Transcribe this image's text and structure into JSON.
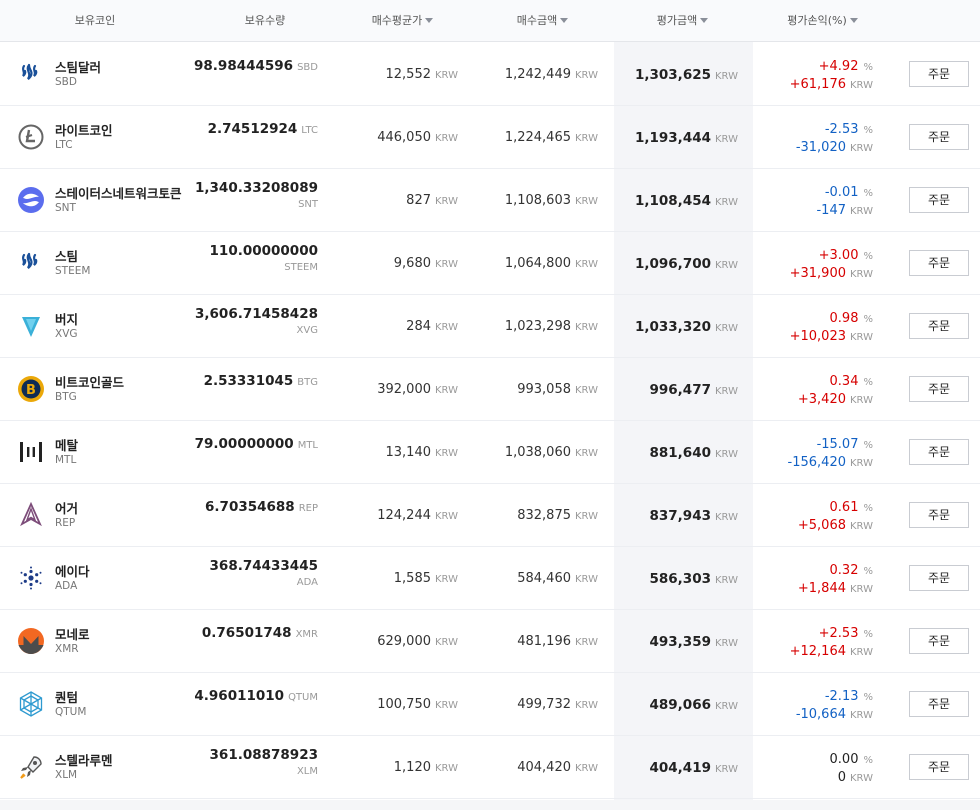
{
  "header": {
    "col_coin": "보유코인",
    "col_qty": "보유수량",
    "col_avg_price": "매수평균가",
    "col_buy_amount": "매수금액",
    "col_eval_amount": "평가금액",
    "col_profit": "평가손익(%)"
  },
  "unit": "KRW",
  "pct_unit": "%",
  "order_label": "주문",
  "rows": [
    {
      "icon": "steem-dollars-icon",
      "name": "스팀달러",
      "symbol": "SBD",
      "qty": "98.98444596",
      "qty_unit": "SBD",
      "avg_price": "12,552",
      "buy_amount": "1,242,449",
      "eval_amount": "1,303,625",
      "profit_pct": "+4.92",
      "profit_krw": "+61,176",
      "color": "#d60000"
    },
    {
      "icon": "litecoin-icon",
      "name": "라이트코인",
      "symbol": "LTC",
      "qty": "2.74512924",
      "qty_unit": "LTC",
      "avg_price": "446,050",
      "buy_amount": "1,224,465",
      "eval_amount": "1,193,444",
      "profit_pct": "-2.53",
      "profit_krw": "-31,020",
      "color": "#1261c4"
    },
    {
      "icon": "status-network-icon",
      "name": "스테이터스네트워크토큰",
      "symbol": "SNT",
      "qty": "1,340.33208089",
      "qty_unit": "SNT",
      "avg_price": "827",
      "buy_amount": "1,108,603",
      "eval_amount": "1,108,454",
      "profit_pct": "-0.01",
      "profit_krw": "-147",
      "color": "#1261c4"
    },
    {
      "icon": "steem-icon",
      "name": "스팀",
      "symbol": "STEEM",
      "qty": "110.00000000",
      "qty_unit": "STEEM",
      "avg_price": "9,680",
      "buy_amount": "1,064,800",
      "eval_amount": "1,096,700",
      "profit_pct": "+3.00",
      "profit_krw": "+31,900",
      "color": "#d60000"
    },
    {
      "icon": "verge-icon",
      "name": "버지",
      "symbol": "XVG",
      "qty": "3,606.71458428",
      "qty_unit": "XVG",
      "avg_price": "284",
      "buy_amount": "1,023,298",
      "eval_amount": "1,033,320",
      "profit_pct": "0.98",
      "profit_krw": "+10,023",
      "color": "#d60000"
    },
    {
      "icon": "bitcoin-gold-icon",
      "name": "비트코인골드",
      "symbol": "BTG",
      "qty": "2.53331045",
      "qty_unit": "BTG",
      "avg_price": "392,000",
      "buy_amount": "993,058",
      "eval_amount": "996,477",
      "profit_pct": "0.34",
      "profit_krw": "+3,420",
      "color": "#d60000"
    },
    {
      "icon": "metal-icon",
      "name": "메탈",
      "symbol": "MTL",
      "qty": "79.00000000",
      "qty_unit": "MTL",
      "avg_price": "13,140",
      "buy_amount": "1,038,060",
      "eval_amount": "881,640",
      "profit_pct": "-15.07",
      "profit_krw": "-156,420",
      "color": "#1261c4"
    },
    {
      "icon": "augur-icon",
      "name": "어거",
      "symbol": "REP",
      "qty": "6.70354688",
      "qty_unit": "REP",
      "avg_price": "124,244",
      "buy_amount": "832,875",
      "eval_amount": "837,943",
      "profit_pct": "0.61",
      "profit_krw": "+5,068",
      "color": "#d60000"
    },
    {
      "icon": "cardano-icon",
      "name": "에이다",
      "symbol": "ADA",
      "qty": "368.74433445",
      "qty_unit": "ADA",
      "avg_price": "1,585",
      "buy_amount": "584,460",
      "eval_amount": "586,303",
      "profit_pct": "0.32",
      "profit_krw": "+1,844",
      "color": "#d60000"
    },
    {
      "icon": "monero-icon",
      "name": "모네로",
      "symbol": "XMR",
      "qty": "0.76501748",
      "qty_unit": "XMR",
      "avg_price": "629,000",
      "buy_amount": "481,196",
      "eval_amount": "493,359",
      "profit_pct": "+2.53",
      "profit_krw": "+12,164",
      "color": "#d60000"
    },
    {
      "icon": "qtum-icon",
      "name": "퀀텀",
      "symbol": "QTUM",
      "qty": "4.96011010",
      "qty_unit": "QTUM",
      "avg_price": "100,750",
      "buy_amount": "499,732",
      "eval_amount": "489,066",
      "profit_pct": "-2.13",
      "profit_krw": "-10,664",
      "color": "#1261c4"
    },
    {
      "icon": "stellar-icon",
      "name": "스텔라루멘",
      "symbol": "XLM",
      "qty": "361.08878923",
      "qty_unit": "XLM",
      "avg_price": "1,120",
      "buy_amount": "404,420",
      "eval_amount": "404,419",
      "profit_pct": "0.00",
      "profit_krw": "0",
      "color": "#222222"
    }
  ]
}
